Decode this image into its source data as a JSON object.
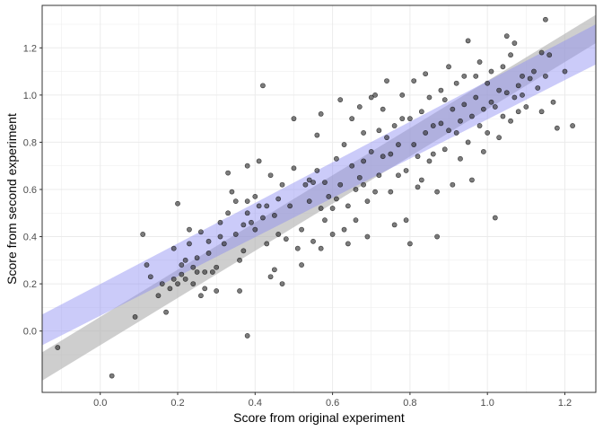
{
  "chart_data": {
    "type": "scatter",
    "title": "",
    "xlabel": "Score from original experiment",
    "ylabel": "Score from second experiment",
    "xlim": [
      -0.15,
      1.28
    ],
    "ylim": [
      -0.26,
      1.38
    ],
    "x_ticks": [
      0.0,
      0.2,
      0.4,
      0.6,
      0.8,
      1.0,
      1.2
    ],
    "x_tick_labels": [
      "0.0",
      "0.2",
      "0.4",
      "0.6",
      "0.8",
      "1.0",
      "1.2"
    ],
    "y_ticks": [
      0.0,
      0.2,
      0.4,
      0.6,
      0.8,
      1.0,
      1.2
    ],
    "y_tick_labels": [
      "0.0",
      "0.2",
      "0.4",
      "0.6",
      "0.8",
      "1.0",
      "1.2"
    ],
    "grid": true,
    "legend": "none",
    "colors": {
      "points": "#2b2b2b",
      "band_identity": "#b3b3b3",
      "band_fit": "#8c8cf2",
      "grid": "#ebebeb",
      "panel_border": "#333333"
    },
    "bands": [
      {
        "kind": "identity",
        "x": [
          -0.15,
          1.28
        ],
        "lower": [
          -0.21,
          1.22
        ],
        "upper": [
          -0.09,
          1.34
        ]
      },
      {
        "kind": "fit",
        "x": [
          -0.15,
          1.28
        ],
        "lower": [
          -0.06,
          1.13
        ],
        "upper": [
          0.07,
          1.3
        ]
      }
    ],
    "series": [
      {
        "points": [
          [
            -0.11,
            -0.07
          ],
          [
            0.03,
            -0.19
          ],
          [
            0.09,
            0.06
          ],
          [
            0.11,
            0.41
          ],
          [
            0.12,
            0.28
          ],
          [
            0.13,
            0.23
          ],
          [
            0.15,
            0.15
          ],
          [
            0.16,
            0.2
          ],
          [
            0.17,
            0.08
          ],
          [
            0.18,
            0.18
          ],
          [
            0.19,
            0.22
          ],
          [
            0.19,
            0.35
          ],
          [
            0.2,
            0.54
          ],
          [
            0.2,
            0.2
          ],
          [
            0.21,
            0.24
          ],
          [
            0.21,
            0.28
          ],
          [
            0.22,
            0.22
          ],
          [
            0.22,
            0.3
          ],
          [
            0.23,
            0.37
          ],
          [
            0.23,
            0.43
          ],
          [
            0.24,
            0.2
          ],
          [
            0.24,
            0.27
          ],
          [
            0.25,
            0.31
          ],
          [
            0.25,
            0.25
          ],
          [
            0.26,
            0.42
          ],
          [
            0.26,
            0.15
          ],
          [
            0.27,
            0.25
          ],
          [
            0.27,
            0.18
          ],
          [
            0.28,
            0.33
          ],
          [
            0.28,
            0.38
          ],
          [
            0.29,
            0.25
          ],
          [
            0.3,
            0.17
          ],
          [
            0.3,
            0.27
          ],
          [
            0.31,
            0.4
          ],
          [
            0.31,
            0.46
          ],
          [
            0.32,
            0.37
          ],
          [
            0.33,
            0.5
          ],
          [
            0.33,
            0.67
          ],
          [
            0.34,
            0.59
          ],
          [
            0.35,
            0.55
          ],
          [
            0.35,
            0.41
          ],
          [
            0.36,
            0.3
          ],
          [
            0.36,
            0.17
          ],
          [
            0.37,
            0.34
          ],
          [
            0.37,
            0.45
          ],
          [
            0.38,
            0.5
          ],
          [
            0.38,
            0.55
          ],
          [
            0.38,
            0.7
          ],
          [
            0.39,
            0.46
          ],
          [
            0.4,
            0.43
          ],
          [
            0.4,
            0.57
          ],
          [
            0.41,
            0.53
          ],
          [
            0.41,
            0.72
          ],
          [
            0.42,
            1.04
          ],
          [
            0.42,
            0.48
          ],
          [
            0.43,
            0.53
          ],
          [
            0.43,
            0.37
          ],
          [
            0.44,
            0.66
          ],
          [
            0.44,
            0.23
          ],
          [
            0.45,
            0.49
          ],
          [
            0.46,
            0.56
          ],
          [
            0.46,
            0.41
          ],
          [
            0.47,
            0.62
          ],
          [
            0.47,
            0.2
          ],
          [
            0.48,
            0.39
          ],
          [
            0.49,
            0.53
          ],
          [
            0.5,
            0.69
          ],
          [
            0.5,
            0.9
          ],
          [
            0.51,
            0.35
          ],
          [
            0.52,
            0.43
          ],
          [
            0.52,
            0.28
          ],
          [
            0.53,
            0.62
          ],
          [
            0.54,
            0.55
          ],
          [
            0.54,
            0.64
          ],
          [
            0.55,
            0.38
          ],
          [
            0.55,
            0.63
          ],
          [
            0.56,
            0.83
          ],
          [
            0.56,
            0.68
          ],
          [
            0.57,
            0.92
          ],
          [
            0.57,
            0.52
          ],
          [
            0.58,
            0.47
          ],
          [
            0.58,
            0.63
          ],
          [
            0.59,
            0.57
          ],
          [
            0.6,
            0.52
          ],
          [
            0.6,
            0.41
          ],
          [
            0.61,
            0.73
          ],
          [
            0.61,
            0.56
          ],
          [
            0.62,
            0.62
          ],
          [
            0.62,
            0.98
          ],
          [
            0.63,
            0.43
          ],
          [
            0.63,
            0.79
          ],
          [
            0.64,
            0.37
          ],
          [
            0.64,
            0.53
          ],
          [
            0.65,
            0.9
          ],
          [
            0.65,
            0.7
          ],
          [
            0.66,
            0.47
          ],
          [
            0.66,
            0.6
          ],
          [
            0.67,
            0.95
          ],
          [
            0.67,
            0.65
          ],
          [
            0.68,
            0.84
          ],
          [
            0.68,
            0.72
          ],
          [
            0.69,
            0.4
          ],
          [
            0.69,
            0.55
          ],
          [
            0.7,
            0.99
          ],
          [
            0.7,
            0.76
          ],
          [
            0.71,
            0.59
          ],
          [
            0.71,
            1.0
          ],
          [
            0.72,
            0.85
          ],
          [
            0.72,
            0.66
          ],
          [
            0.73,
            0.74
          ],
          [
            0.73,
            0.94
          ],
          [
            0.74,
            1.06
          ],
          [
            0.74,
            0.82
          ],
          [
            0.75,
            0.75
          ],
          [
            0.75,
            0.59
          ],
          [
            0.76,
            0.87
          ],
          [
            0.76,
            0.45
          ],
          [
            0.77,
            0.79
          ],
          [
            0.77,
            0.66
          ],
          [
            0.78,
            1.0
          ],
          [
            0.78,
            0.9
          ],
          [
            0.79,
            0.68
          ],
          [
            0.79,
            0.47
          ],
          [
            0.8,
            0.9
          ],
          [
            0.8,
            0.37
          ],
          [
            0.81,
            0.79
          ],
          [
            0.81,
            1.06
          ],
          [
            0.82,
            0.74
          ],
          [
            0.82,
            0.61
          ],
          [
            0.83,
            0.93
          ],
          [
            0.83,
            0.64
          ],
          [
            0.84,
            0.84
          ],
          [
            0.84,
            1.09
          ],
          [
            0.85,
            0.72
          ],
          [
            0.85,
            0.99
          ],
          [
            0.86,
            0.87
          ],
          [
            0.86,
            0.75
          ],
          [
            0.87,
            0.4
          ],
          [
            0.87,
            0.59
          ],
          [
            0.88,
            0.88
          ],
          [
            0.88,
            1.02
          ],
          [
            0.89,
            0.77
          ],
          [
            0.89,
            0.98
          ],
          [
            0.9,
            1.12
          ],
          [
            0.9,
            0.85
          ],
          [
            0.91,
            0.94
          ],
          [
            0.91,
            0.62
          ],
          [
            0.92,
            0.84
          ],
          [
            0.92,
            1.05
          ],
          [
            0.93,
            0.73
          ],
          [
            0.93,
            0.89
          ],
          [
            0.94,
            1.08
          ],
          [
            0.94,
            0.96
          ],
          [
            0.95,
            0.8
          ],
          [
            0.95,
            1.23
          ],
          [
            0.96,
            0.91
          ],
          [
            0.96,
            0.64
          ],
          [
            0.97,
            1.08
          ],
          [
            0.97,
            0.99
          ],
          [
            0.98,
            0.87
          ],
          [
            0.98,
            1.14
          ],
          [
            0.99,
            0.76
          ],
          [
            0.99,
            0.94
          ],
          [
            1.0,
            1.05
          ],
          [
            1.0,
            0.84
          ],
          [
            1.01,
            0.97
          ],
          [
            1.01,
            1.1
          ],
          [
            1.02,
            0.48
          ],
          [
            1.02,
            0.95
          ],
          [
            1.03,
            1.02
          ],
          [
            1.03,
            0.82
          ],
          [
            1.04,
            1.12
          ],
          [
            1.04,
            0.91
          ],
          [
            1.05,
            1.25
          ],
          [
            1.05,
            1.01
          ],
          [
            1.06,
            0.89
          ],
          [
            1.06,
            1.17
          ],
          [
            1.07,
            0.99
          ],
          [
            1.07,
            1.22
          ],
          [
            1.08,
            1.04
          ],
          [
            1.08,
            0.93
          ],
          [
            1.09,
            1.0
          ],
          [
            1.09,
            1.08
          ],
          [
            1.1,
            0.95
          ],
          [
            1.11,
            1.07
          ],
          [
            1.12,
            1.1
          ],
          [
            1.13,
            1.03
          ],
          [
            1.14,
            0.93
          ],
          [
            1.14,
            1.18
          ],
          [
            1.15,
            1.32
          ],
          [
            1.15,
            1.08
          ],
          [
            1.16,
            1.17
          ],
          [
            1.17,
            0.97
          ],
          [
            1.18,
            0.86
          ],
          [
            1.2,
            1.1
          ],
          [
            1.22,
            0.87
          ],
          [
            0.38,
            -0.02
          ],
          [
            0.57,
            0.35
          ],
          [
            0.45,
            0.26
          ],
          [
            0.68,
            0.62
          ]
        ]
      }
    ]
  }
}
